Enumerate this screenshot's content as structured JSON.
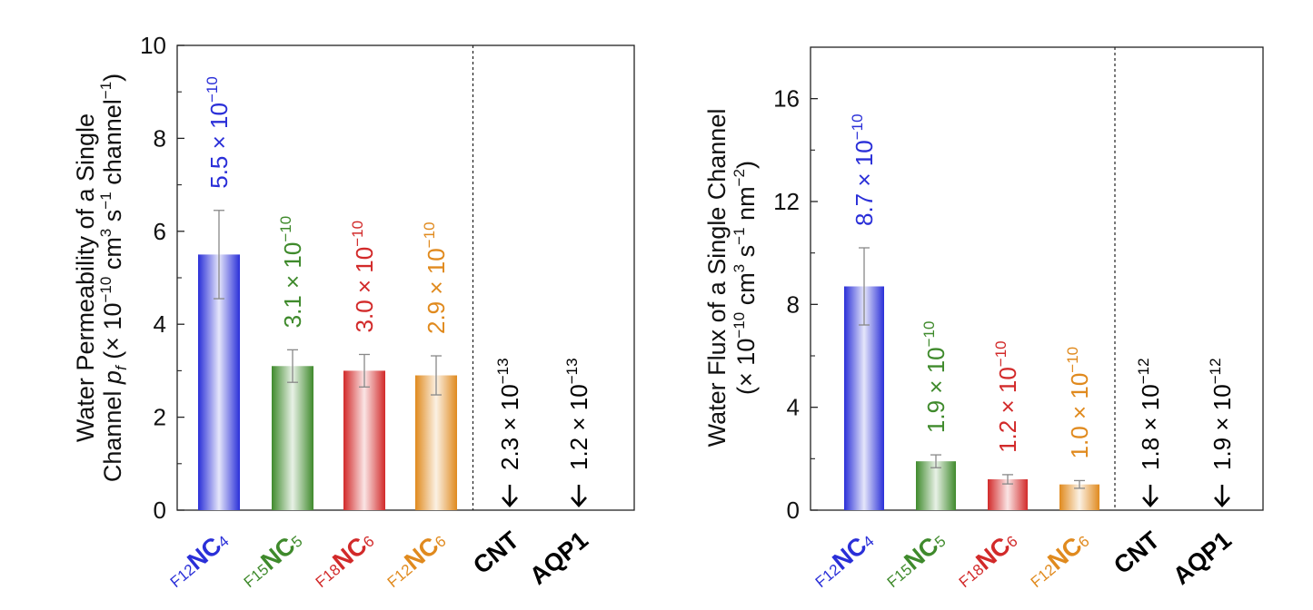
{
  "chart_data": [
    {
      "type": "bar",
      "categories": [
        "F12NC4",
        "F15NC5",
        "F18NC6",
        "F12NC6",
        "CNT",
        "AQP1"
      ],
      "category_labels": [
        {
          "sub": "F12",
          "main": "NC",
          "sub2": "4"
        },
        {
          "sub": "F15",
          "main": "NC",
          "sub2": "5"
        },
        {
          "sub": "F18",
          "main": "NC",
          "sub2": "6"
        },
        {
          "sub": "F12",
          "main": "NC",
          "sub2": "6"
        },
        {
          "sub": "",
          "main": "CNT",
          "sub2": ""
        },
        {
          "sub": "",
          "main": "AQP1",
          "sub2": ""
        }
      ],
      "values": [
        5.5,
        3.1,
        3.0,
        2.9,
        0.0023,
        0.0012
      ],
      "errors": [
        0.95,
        0.35,
        0.35,
        0.42,
        0,
        0
      ],
      "bar_drawn": [
        true,
        true,
        true,
        true,
        false,
        false
      ],
      "colors": [
        "#2a2fd8",
        "#3f8a2c",
        "#d22a2a",
        "#e08a1e",
        "#000000",
        "#000000"
      ],
      "value_labels": [
        {
          "mantissa": "5.5 × 10",
          "exp": "−10"
        },
        {
          "mantissa": "3.1 × 10",
          "exp": "−10"
        },
        {
          "mantissa": "3.0 × 10",
          "exp": "−10"
        },
        {
          "mantissa": "2.9 × 10",
          "exp": "−10"
        },
        {
          "mantissa": "2.3 × 10",
          "exp": "−13"
        },
        {
          "mantissa": "1.2 × 10",
          "exp": "−13"
        }
      ],
      "ylabel_line1": "Water Permeability of a Single",
      "ylabel_line2_a": "Channel ",
      "ylabel_line2_pf": "p",
      "ylabel_line2_f": "f",
      "ylabel_line2_b": " (× 10",
      "ylabel_line2_exp1": "−10",
      "ylabel_line2_c": " cm",
      "ylabel_line2_exp2": "3",
      "ylabel_line2_d": " s",
      "ylabel_line2_exp3": "−1",
      "ylabel_line2_e": " channel",
      "ylabel_line2_exp4": "−1",
      "ylabel_line2_g": ")",
      "ylim": [
        0,
        10
      ],
      "yticks": [
        "0",
        "2",
        "4",
        "6",
        "8",
        "10"
      ],
      "ytick_values": [
        0,
        2,
        4,
        6,
        8,
        10
      ],
      "divider_after_index": 3
    },
    {
      "type": "bar",
      "categories": [
        "F12NC4",
        "F15NC5",
        "F18NC6",
        "F12NC6",
        "CNT",
        "AQP1"
      ],
      "category_labels": [
        {
          "sub": "F12",
          "main": "NC",
          "sub2": "4"
        },
        {
          "sub": "F15",
          "main": "NC",
          "sub2": "5"
        },
        {
          "sub": "F18",
          "main": "NC",
          "sub2": "6"
        },
        {
          "sub": "F12",
          "main": "NC",
          "sub2": "6"
        },
        {
          "sub": "",
          "main": "CNT",
          "sub2": ""
        },
        {
          "sub": "",
          "main": "AQP1",
          "sub2": ""
        }
      ],
      "values": [
        8.7,
        1.9,
        1.2,
        1.0,
        0.018,
        0.019
      ],
      "errors": [
        1.5,
        0.25,
        0.18,
        0.15,
        0,
        0
      ],
      "bar_drawn": [
        true,
        true,
        true,
        true,
        false,
        false
      ],
      "colors": [
        "#2a2fd8",
        "#3f8a2c",
        "#d22a2a",
        "#e08a1e",
        "#000000",
        "#000000"
      ],
      "value_labels": [
        {
          "mantissa": "8.7 × 10",
          "exp": "−10"
        },
        {
          "mantissa": "1.9 × 10",
          "exp": "−10"
        },
        {
          "mantissa": "1.2 × 10",
          "exp": "−10"
        },
        {
          "mantissa": "1.0 × 10",
          "exp": "−10"
        },
        {
          "mantissa": "1.8 × 10",
          "exp": "−12"
        },
        {
          "mantissa": "1.9 × 10",
          "exp": "−12"
        }
      ],
      "ylabel_line1": "Water Flux of a Single Channel",
      "ylabel_line2_a": "(× 10",
      "ylabel_line2_exp1": "−10",
      "ylabel_line2_c": " cm",
      "ylabel_line2_exp2": "3",
      "ylabel_line2_d": " s",
      "ylabel_line2_exp3": "−1",
      "ylabel_line2_e": " nm",
      "ylabel_line2_exp4": "−2",
      "ylabel_line2_g": ")",
      "ylim": [
        0,
        18
      ],
      "yticks": [
        "0",
        "4",
        "8",
        "12",
        "16"
      ],
      "ytick_values": [
        0,
        4,
        8,
        12,
        16
      ],
      "divider_after_index": 3
    }
  ]
}
